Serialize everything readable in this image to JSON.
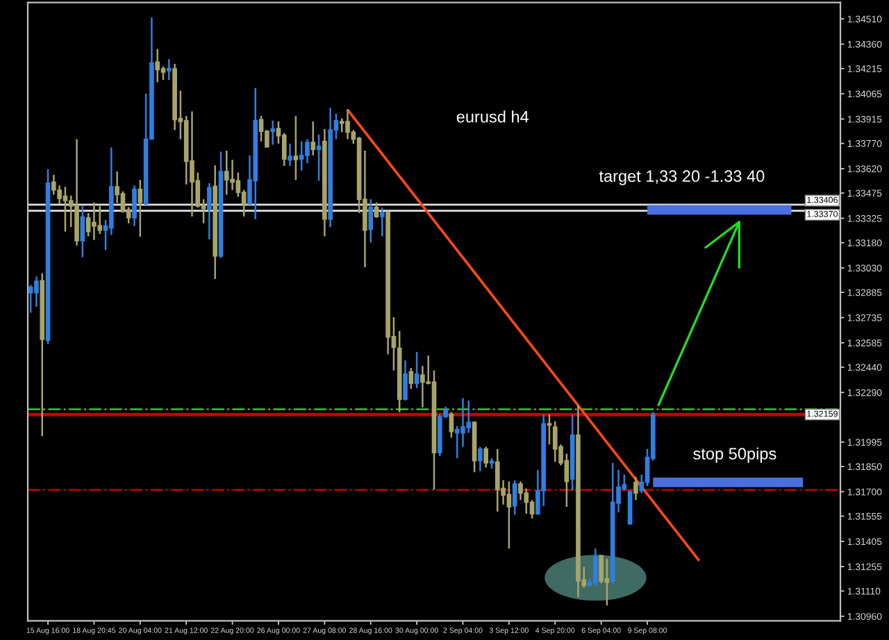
{
  "chart_data": {
    "type": "candlestick",
    "title": "eurusd h4",
    "annotations": [
      "target 1,33 20 -1.33 40",
      "stop 50pips"
    ],
    "categories": [
      null,
      null,
      null,
      "15 Aug 16:00",
      null,
      null,
      null,
      null,
      null,
      null,
      null,
      "18 Aug 20:45",
      null,
      null,
      null,
      null,
      null,
      null,
      null,
      "20 Aug 04:00",
      null,
      null,
      null,
      null,
      null,
      null,
      null,
      "21 Aug 12:00",
      null,
      null,
      null,
      null,
      null,
      null,
      null,
      "22 Aug 20:00",
      null,
      null,
      null,
      null,
      null,
      null,
      null,
      "26 Aug 00:00",
      null,
      null,
      null,
      null,
      null,
      null,
      null,
      "27 Aug 08:00",
      null,
      null,
      null,
      null,
      null,
      null,
      null,
      "28 Aug 16:00",
      null,
      null,
      null,
      null,
      null,
      null,
      null,
      "30 Aug 00:00",
      null,
      null,
      null,
      null,
      null,
      null,
      null,
      "2 Sep 04:00",
      null,
      null,
      null,
      null,
      null,
      null,
      null,
      "3 Sep 12:00",
      null,
      null,
      null,
      null,
      null,
      null,
      null,
      "4 Sep 20:00",
      null,
      null,
      null,
      null,
      null,
      null,
      null,
      "6 Sep 04:00",
      null,
      null,
      null,
      null,
      null,
      null,
      null,
      "9 Sep 08:00",
      null,
      null,
      null,
      null,
      null,
      null,
      null,
      null,
      null,
      null,
      null,
      null,
      null,
      null,
      null,
      null,
      null,
      null,
      null,
      null,
      null,
      null,
      null,
      null,
      null,
      null,
      null,
      null,
      null,
      null,
      null,
      null,
      null
    ],
    "ohlc": [
      [
        1.32883,
        1.32929,
        1.32764,
        1.32916
      ],
      [
        1.32883,
        1.32979,
        1.328,
        1.32951
      ],
      [
        1.32954,
        1.32998,
        1.3203,
        1.32605
      ],
      [
        1.326,
        1.33617,
        1.32578,
        1.33534
      ],
      [
        1.3354,
        1.33584,
        1.33465,
        1.33493
      ],
      [
        1.33493,
        1.3352,
        1.3341,
        1.33443
      ],
      [
        1.33457,
        1.33512,
        1.33246,
        1.3343
      ],
      [
        1.3343,
        1.3346,
        1.33273,
        1.33397
      ],
      [
        1.33402,
        1.33795,
        1.33163,
        1.33191
      ],
      [
        1.33191,
        1.33397,
        1.33094,
        1.33334
      ],
      [
        1.33328,
        1.33356,
        1.33218,
        1.33246
      ],
      [
        1.33301,
        1.33419,
        1.33196,
        1.33279
      ],
      [
        1.33281,
        1.33397,
        1.33232,
        1.33254
      ],
      [
        1.33254,
        1.33314,
        1.33136,
        1.33279
      ],
      [
        1.33267,
        1.33746,
        1.33226,
        1.33512
      ],
      [
        1.33512,
        1.33603,
        1.33416,
        1.33465
      ],
      [
        1.33471,
        1.33485,
        1.33361,
        1.33364
      ],
      [
        1.33375,
        1.33391,
        1.33295,
        1.33328
      ],
      [
        1.33328,
        1.3352,
        1.33279,
        1.33498
      ],
      [
        1.33498,
        1.33553,
        1.33215,
        1.33419
      ],
      [
        1.3341,
        1.34065,
        1.33405,
        1.33795
      ],
      [
        1.33795,
        1.34518,
        1.33795,
        1.34249
      ],
      [
        1.34254,
        1.34331,
        1.34133,
        1.34208
      ],
      [
        1.34213,
        1.34227,
        1.34147,
        1.34194
      ],
      [
        1.34202,
        1.34271,
        1.34147,
        1.34216
      ],
      [
        1.34213,
        1.34243,
        1.3385,
        1.33911
      ],
      [
        1.33919,
        1.34084,
        1.33795,
        1.339
      ],
      [
        1.33905,
        1.33933,
        1.33526,
        1.33663
      ],
      [
        1.33666,
        1.3396,
        1.33336,
        1.33542
      ],
      [
        1.33548,
        1.33597,
        1.33388,
        1.33397
      ],
      [
        1.33402,
        1.33438,
        1.33295,
        1.33383
      ],
      [
        1.33378,
        1.33534,
        1.33199,
        1.33507
      ],
      [
        1.33515,
        1.33639,
        1.32965,
        1.331
      ],
      [
        1.331,
        1.33721,
        1.33089,
        1.33603
      ],
      [
        1.33603,
        1.33727,
        1.33465,
        1.33553
      ],
      [
        1.33556,
        1.33672,
        1.33493,
        1.3354
      ],
      [
        1.33548,
        1.33597,
        1.33452,
        1.33479
      ],
      [
        1.33479,
        1.33493,
        1.33336,
        1.3341
      ],
      [
        1.3341,
        1.33699,
        1.33405,
        1.33553
      ],
      [
        1.33548,
        1.34098,
        1.3332,
        1.33905
      ],
      [
        1.33911,
        1.33933,
        1.33782,
        1.33842
      ],
      [
        1.33842,
        1.3385,
        1.33746,
        1.33749
      ],
      [
        1.33842,
        1.33905,
        1.33762,
        1.33856
      ],
      [
        1.33859,
        1.339,
        1.33768,
        1.33815
      ],
      [
        1.3382,
        1.33831,
        1.33636,
        1.33677
      ],
      [
        1.33672,
        1.33768,
        1.33636,
        1.33694
      ],
      [
        1.33694,
        1.33933,
        1.33553,
        1.33674
      ],
      [
        1.33677,
        1.33782,
        1.33608,
        1.33699
      ],
      [
        1.33699,
        1.33795,
        1.33652,
        1.33776
      ],
      [
        1.33776,
        1.339,
        1.33699,
        1.33735
      ],
      [
        1.33735,
        1.33823,
        1.33548,
        1.33754
      ],
      [
        1.33782,
        1.33856,
        1.33218,
        1.3332
      ],
      [
        1.3332,
        1.33982,
        1.33273,
        1.3385
      ],
      [
        1.3385,
        1.33947,
        1.33795,
        1.33905
      ],
      [
        1.339,
        1.33919,
        1.33837,
        1.33889
      ],
      [
        1.339,
        1.33974,
        1.33795,
        1.33837
      ],
      [
        1.33837,
        1.3385,
        1.33768,
        1.33795
      ],
      [
        1.33801,
        1.33809,
        1.33356,
        1.33438
      ],
      [
        1.33438,
        1.33727,
        1.33034,
        1.33254
      ],
      [
        1.33259,
        1.33438,
        1.33182,
        1.33391
      ],
      [
        1.33391,
        1.33419,
        1.33328,
        1.33334
      ],
      [
        1.33336,
        1.33388,
        1.33218,
        1.33361
      ],
      [
        1.33361,
        1.33369,
        1.32517,
        1.32619
      ],
      [
        1.32622,
        1.32737,
        1.32421,
        1.32558
      ],
      [
        1.32553,
        1.32655,
        1.32173,
        1.3225
      ],
      [
        1.3225,
        1.32481,
        1.32242,
        1.32399
      ],
      [
        1.32413,
        1.32435,
        1.32311,
        1.32344
      ],
      [
        1.32344,
        1.32531,
        1.32316,
        1.32399
      ],
      [
        1.32393,
        1.32448,
        1.32201,
        1.32352
      ],
      [
        1.32352,
        1.32509,
        1.32338,
        1.32344
      ],
      [
        1.32352,
        1.32421,
        1.31712,
        1.31932
      ],
      [
        1.31932,
        1.3216,
        1.31912,
        1.32146
      ],
      [
        1.32146,
        1.32206,
        1.32138,
        1.32187
      ],
      [
        1.3216,
        1.32173,
        1.32022,
        1.32058
      ],
      [
        1.3205,
        1.32091,
        1.31899,
        1.32069
      ],
      [
        1.3205,
        1.32256,
        1.31967,
        1.32085
      ],
      [
        1.3208,
        1.32242,
        1.3205,
        1.32113
      ],
      [
        1.32113,
        1.32118,
        1.31816,
        1.31885
      ],
      [
        1.31885,
        1.31967,
        1.31822,
        1.31954
      ],
      [
        1.31954,
        1.31967,
        1.31844,
        1.31871
      ],
      [
        1.31871,
        1.31899,
        1.31838,
        1.31882
      ],
      [
        1.31877,
        1.31954,
        1.31582,
        1.31712
      ],
      [
        1.3172,
        1.31769,
        1.31624,
        1.31679
      ],
      [
        1.31684,
        1.31761,
        1.31362,
        1.3161
      ],
      [
        1.31615,
        1.31767,
        1.31563,
        1.31747
      ],
      [
        1.31747,
        1.31761,
        1.31651,
        1.31692
      ],
      [
        1.31692,
        1.3172,
        1.31569,
        1.31637
      ],
      [
        1.31637,
        1.31651,
        1.31541,
        1.31569
      ],
      [
        1.31569,
        1.3183,
        1.31563,
        1.31706
      ],
      [
        1.31706,
        1.3216,
        1.31615,
        1.32105
      ],
      [
        1.32105,
        1.3216,
        1.31981,
        1.32096
      ],
      [
        1.32085,
        1.32118,
        1.31877,
        1.31954
      ],
      [
        1.31967,
        1.31981,
        1.31857,
        1.31871
      ],
      [
        1.31885,
        1.31926,
        1.3161,
        1.31761
      ],
      [
        1.31775,
        1.3216,
        1.31706,
        1.32036
      ],
      [
        1.32036,
        1.32215,
        1.31074,
        1.3117
      ],
      [
        1.31176,
        1.31253,
        1.31129,
        1.31143
      ],
      [
        1.31143,
        1.31184,
        1.31143,
        1.31162
      ],
      [
        1.31162,
        1.31362,
        1.31143,
        1.31313
      ],
      [
        1.31321,
        1.31321,
        1.31156,
        1.3117
      ],
      [
        1.31184,
        1.31302,
        1.31024,
        1.31162
      ],
      [
        1.3117,
        1.31871,
        1.31156,
        1.31637
      ],
      [
        1.31632,
        1.3183,
        1.31577,
        1.31728
      ],
      [
        1.3172,
        1.31802,
        1.31706,
        1.31742
      ],
      [
        1.31508,
        1.31706,
        1.31508,
        1.31701
      ],
      [
        1.31756,
        1.31789,
        1.31651,
        1.31692
      ],
      [
        1.31706,
        1.31802,
        1.31692,
        1.31756
      ],
      [
        1.31756,
        1.31954,
        1.31734,
        1.31904
      ],
      [
        1.31899,
        1.32173,
        1.31885,
        1.32159
      ],
      null,
      null,
      null,
      null,
      null,
      null,
      null,
      null,
      null,
      null,
      null,
      null,
      null,
      null,
      null,
      null,
      null,
      null,
      null,
      null,
      null,
      null,
      null,
      null,
      null,
      null,
      null,
      null,
      null,
      null,
      null,
      null
    ],
    "colors": [
      "#2f7fe0",
      "#2f7fe0",
      "#a8a46a",
      "#2f7fe0",
      "#a8a46a",
      "#a8a46a",
      "#a8a46a",
      "#a8a46a",
      "#a8a46a",
      "#2f7fe0",
      "#a8a46a",
      "#a8a46a",
      "#a8a46a",
      "#2f7fe0",
      "#2f7fe0",
      "#a8a46a",
      "#a8a46a",
      "#a8a46a",
      "#2f7fe0",
      "#a8a46a",
      "#2f7fe0",
      "#2f7fe0",
      "#a8a46a",
      "#a8a46a",
      "#2f7fe0",
      "#a8a46a",
      "#a8a46a",
      "#a8a46a",
      "#a8a46a",
      "#a8a46a",
      "#a8a46a",
      "#2f7fe0",
      "#a8a46a",
      "#2f7fe0",
      "#a8a46a",
      "#a8a46a",
      "#a8a46a",
      "#a8a46a",
      "#2f7fe0",
      "#2f7fe0",
      "#a8a46a",
      "#a8a46a",
      "#2f7fe0",
      "#a8a46a",
      "#a8a46a",
      "#2f7fe0",
      "#a8a46a",
      "#2f7fe0",
      "#2f7fe0",
      "#a8a46a",
      "#2f7fe0",
      "#a8a46a",
      "#2f7fe0",
      "#2f7fe0",
      "#a8a46a",
      "#a8a46a",
      "#a8a46a",
      "#a8a46a",
      "#a8a46a",
      "#2f7fe0",
      "#a8a46a",
      "#2f7fe0",
      "#a8a46a",
      "#a8a46a",
      "#a8a46a",
      "#2f7fe0",
      "#a8a46a",
      "#2f7fe0",
      "#a8a46a",
      "#a8a46a",
      "#a8a46a",
      "#2f7fe0",
      "#2f7fe0",
      "#a8a46a",
      "#2f7fe0",
      "#2f7fe0",
      "#2f7fe0",
      "#a8a46a",
      "#2f7fe0",
      "#a8a46a",
      "#2f7fe0",
      "#a8a46a",
      "#a8a46a",
      "#a8a46a",
      "#2f7fe0",
      "#a8a46a",
      "#a8a46a",
      "#a8a46a",
      "#2f7fe0",
      "#2f7fe0",
      "#a8a46a",
      "#a8a46a",
      "#a8a46a",
      "#a8a46a",
      "#2f7fe0",
      "#a8a46a",
      "#a8a46a",
      "#2f7fe0",
      "#2f7fe0",
      "#a8a46a",
      "#a8a46a",
      "#2f7fe0",
      "#2f7fe0",
      "#2f7fe0",
      "#2f7fe0",
      "#a8a46a",
      "#2f7fe0",
      "#2f7fe0",
      "#2f7fe0",
      null,
      null,
      null,
      null,
      null,
      null,
      null,
      null,
      null,
      null,
      null,
      null,
      null,
      null,
      null,
      null,
      null,
      null,
      null,
      null,
      null,
      null,
      null,
      null,
      null,
      null,
      null,
      null,
      null,
      null,
      null,
      null
    ],
    "series": [
      {
        "type": "line",
        "color": "#ff4a12",
        "values": [
          null,
          null,
          null,
          null,
          null,
          null,
          null,
          null,
          null,
          null,
          null,
          null,
          null,
          null,
          null,
          null,
          null,
          null,
          null,
          null,
          null,
          null,
          null,
          null,
          null,
          null,
          null,
          null,
          null,
          null,
          null,
          null,
          null,
          null,
          null,
          null,
          null,
          null,
          null,
          null,
          null,
          null,
          null,
          null,
          null,
          null,
          null,
          null,
          null,
          null,
          null,
          null,
          null,
          null,
          null,
          1.3397,
          null,
          null,
          null,
          null,
          null,
          null,
          null,
          null,
          null,
          null,
          null,
          null,
          null,
          null,
          null,
          null,
          null,
          null,
          null,
          null,
          null,
          null,
          null,
          null,
          null,
          null,
          null,
          null,
          null,
          null,
          null,
          null,
          null,
          null,
          null,
          null,
          null,
          null,
          null,
          null,
          null,
          null,
          null,
          null,
          null,
          null,
          null,
          null,
          null,
          null,
          null,
          null,
          null,
          null,
          null,
          null,
          null,
          null,
          null,
          null,
          1.3129,
          null,
          null,
          null,
          null,
          null,
          null,
          null,
          null,
          null,
          null,
          null,
          null,
          null,
          null,
          null,
          null,
          null,
          null,
          null,
          null,
          null,
          null,
          null,
          null
        ]
      },
      {
        "type": "line",
        "color": "#4a6fe0",
        "values": [
          null,
          null,
          null,
          null,
          null,
          null,
          null,
          null,
          null,
          null,
          null,
          null,
          null,
          null,
          null,
          null,
          null,
          null,
          null,
          null,
          null,
          null,
          null,
          null,
          null,
          null,
          null,
          null,
          null,
          null,
          null,
          null,
          null,
          null,
          null,
          null,
          null,
          null,
          null,
          null,
          null,
          null,
          null,
          null,
          null,
          null,
          null,
          null,
          null,
          null,
          null,
          null,
          null,
          null,
          null,
          null,
          null,
          null,
          null,
          null,
          null,
          null,
          null,
          null,
          null,
          null,
          null,
          null,
          null,
          null,
          null,
          null,
          null,
          null,
          null,
          null,
          null,
          null,
          null,
          null,
          null,
          null,
          null,
          null,
          null,
          null,
          null,
          null,
          null,
          null,
          null,
          null,
          null,
          null,
          null,
          null,
          null,
          null,
          null,
          null,
          null,
          null,
          null,
          null,
          null,
          null,
          null,
          1.33375,
          1.33375,
          1.33375,
          1.33375,
          1.33375,
          1.33375,
          1.33375,
          1.33375,
          1.33375,
          1.33375,
          1.33375,
          1.33375,
          1.33375,
          1.33375,
          1.33375,
          1.33375,
          1.33375,
          1.33375,
          1.33375,
          1.33375,
          1.33375,
          1.33375,
          1.33375,
          1.33375,
          1.33375,
          1.33375,
          null,
          null,
          null,
          null,
          null,
          null,
          null,
          null
        ]
      },
      {
        "type": "line",
        "color": "#4a6fe0",
        "values": [
          null,
          null,
          null,
          null,
          null,
          null,
          null,
          null,
          null,
          null,
          null,
          null,
          null,
          null,
          null,
          null,
          null,
          null,
          null,
          null,
          null,
          null,
          null,
          null,
          null,
          null,
          null,
          null,
          null,
          null,
          null,
          null,
          null,
          null,
          null,
          null,
          null,
          null,
          null,
          null,
          null,
          null,
          null,
          null,
          null,
          null,
          null,
          null,
          null,
          null,
          null,
          null,
          null,
          null,
          null,
          null,
          null,
          null,
          null,
          null,
          null,
          null,
          null,
          null,
          null,
          null,
          null,
          null,
          null,
          null,
          null,
          null,
          null,
          null,
          null,
          null,
          null,
          null,
          null,
          null,
          null,
          null,
          null,
          null,
          null,
          null,
          null,
          null,
          null,
          null,
          null,
          null,
          null,
          null,
          null,
          null,
          null,
          null,
          null,
          null,
          null,
          null,
          null,
          null,
          null,
          null,
          null,
          null,
          1.31756,
          1.31756,
          1.31756,
          1.31756,
          1.31756,
          1.31756,
          1.31756,
          1.31756,
          1.31756,
          1.31756,
          1.31756,
          1.31756,
          1.31756,
          1.31756,
          1.31756,
          1.31756,
          1.31756,
          1.31756,
          1.31756,
          1.31756,
          1.31756,
          1.31756,
          1.31756,
          1.31756,
          1.31756,
          1.31756,
          1.31756,
          null,
          null,
          null,
          null,
          null,
          null
        ]
      }
    ],
    "ref_lines": [
      {
        "axis": "y",
        "value": 1.33406,
        "label": "1.33406",
        "color": "#e0e0e0",
        "line_style": "solid"
      },
      {
        "axis": "y",
        "value": 1.3337,
        "label": "1.33370",
        "color": "#e0e0e0",
        "line_style": "solid"
      },
      {
        "axis": "y",
        "value": 1.3219,
        "color": "#22c022",
        "line_style": "dashed"
      },
      {
        "axis": "y",
        "value": 1.32159,
        "label": "1.32159",
        "color": "#c00000",
        "line_style": "solid"
      },
      {
        "axis": "y",
        "value": 1.3171,
        "color": "#c00000",
        "line_style": "dashed"
      }
    ],
    "ylim": [
      1.30933,
      1.34607
    ],
    "yticks": [
      {
        "value": 1.3451,
        "label": "1.34510"
      },
      {
        "value": 1.3436,
        "label": "1.34360"
      },
      1.34215,
      1.34065,
      1.33915,
      {
        "value": 1.3377,
        "label": "1.33770"
      },
      {
        "value": 1.3362,
        "label": "1.33620"
      },
      1.33475,
      1.33325,
      {
        "value": 1.3318,
        "label": "1.33180"
      },
      {
        "value": 1.3303,
        "label": "1.33030"
      },
      1.32885,
      1.32735,
      1.32585,
      {
        "value": 1.3244,
        "label": "1.32440"
      },
      {
        "value": 1.3229,
        "label": "1.32290"
      },
      1.31995,
      {
        "value": 1.3185,
        "label": "1.31850"
      },
      {
        "value": 1.317,
        "label": "1.31700"
      },
      1.31555,
      1.31405,
      1.31255,
      {
        "value": 1.3111,
        "label": "1.31110"
      },
      {
        "value": 1.3096,
        "label": "1.30960"
      }
    ],
    "legend": false
  }
}
